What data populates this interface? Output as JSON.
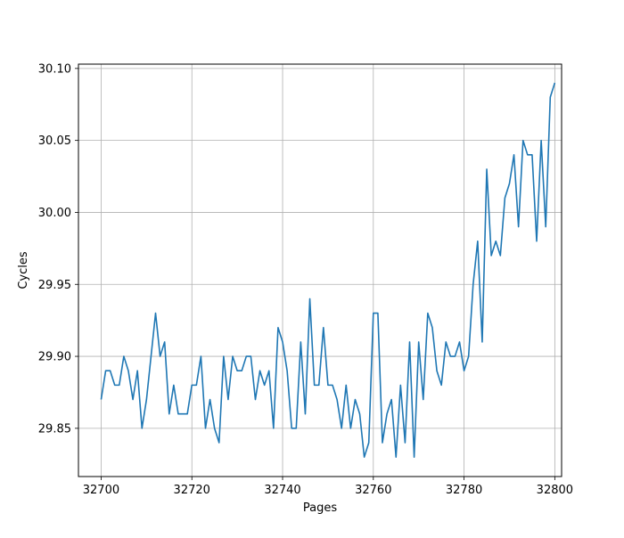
{
  "chart_data": {
    "type": "line",
    "title": "",
    "xlabel": "Pages",
    "ylabel": "Cycles",
    "xlim": [
      32695,
      32801.5
    ],
    "ylim": [
      29.8165,
      30.103
    ],
    "grid": true,
    "xticks": [
      32700,
      32720,
      32740,
      32760,
      32780,
      32800
    ],
    "yticks": [
      29.85,
      29.9,
      29.95,
      30.0,
      30.05,
      30.1
    ],
    "series": [
      {
        "color": "#1f77b4",
        "x_start": 32700,
        "x_step": 1,
        "values": [
          29.87,
          29.89,
          29.89,
          29.88,
          29.88,
          29.9,
          29.89,
          29.87,
          29.89,
          29.85,
          29.87,
          29.9,
          29.93,
          29.9,
          29.91,
          29.86,
          29.88,
          29.86,
          29.86,
          29.86,
          29.88,
          29.88,
          29.9,
          29.85,
          29.87,
          29.85,
          29.84,
          29.9,
          29.87,
          29.9,
          29.89,
          29.89,
          29.9,
          29.9,
          29.87,
          29.89,
          29.88,
          29.89,
          29.85,
          29.92,
          29.91,
          29.89,
          29.85,
          29.85,
          29.91,
          29.86,
          29.94,
          29.88,
          29.88,
          29.92,
          29.88,
          29.88,
          29.87,
          29.85,
          29.88,
          29.85,
          29.87,
          29.86,
          29.83,
          29.84,
          29.93,
          29.93,
          29.84,
          29.86,
          29.87,
          29.83,
          29.88,
          29.84,
          29.91,
          29.83,
          29.91,
          29.87,
          29.93,
          29.92,
          29.89,
          29.88,
          29.91,
          29.9,
          29.9,
          29.91,
          29.89,
          29.9,
          29.95,
          29.98,
          29.91,
          30.03,
          29.97,
          29.98,
          29.97,
          30.01,
          30.02,
          30.04,
          29.99,
          30.05,
          30.04,
          30.04,
          29.98,
          30.05,
          29.99,
          30.08,
          30.09
        ]
      }
    ]
  }
}
